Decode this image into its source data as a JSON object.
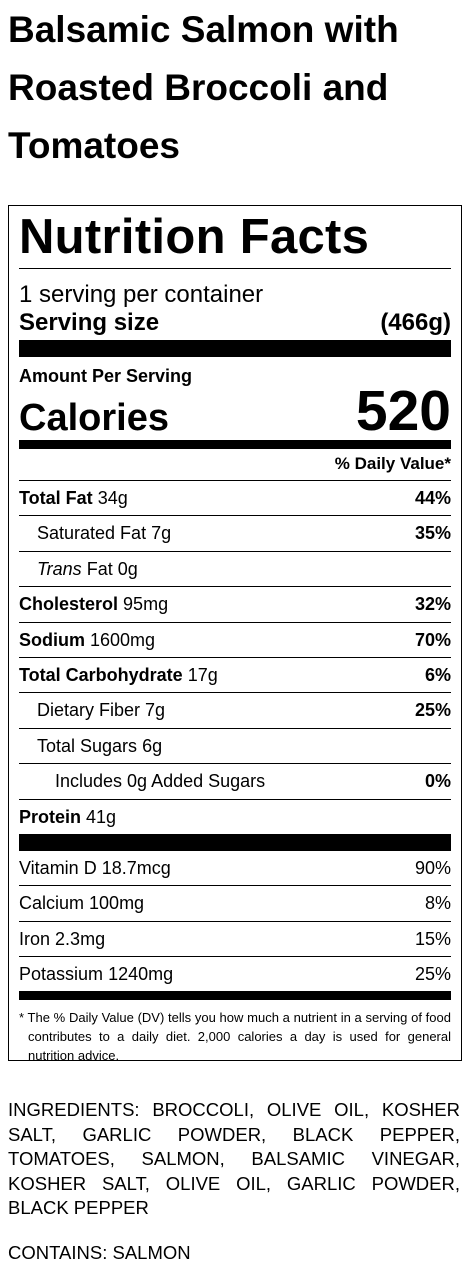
{
  "title": "Balsamic Salmon with Roasted Broccoli and Tomatoes",
  "label": {
    "heading": "Nutrition Facts",
    "servings": "1 serving per container",
    "serving_size_label": "Serving size",
    "serving_size": "(466g)",
    "amount_per_serving": "Amount Per Serving",
    "calories_label": "Calories",
    "calories": 520,
    "dv_header": "% Daily Value*",
    "nutrients": [
      {
        "name": "Total Fat",
        "amount": "34g",
        "dv": "44%",
        "sub": [
          {
            "name": "Saturated Fat",
            "amount": "7g",
            "dv": "35%"
          },
          {
            "name_italic": "Trans",
            "name": "Fat",
            "amount": "0g"
          }
        ]
      },
      {
        "name": "Cholesterol",
        "amount": "95mg",
        "dv": "32%"
      },
      {
        "name": "Sodium",
        "amount": "1600mg",
        "dv": "70%"
      },
      {
        "name": "Total Carbohydrate",
        "amount": "17g",
        "dv": "6%",
        "sub": [
          {
            "name": "Dietary Fiber",
            "amount": "7g",
            "dv": "25%"
          },
          {
            "name": "Total Sugars",
            "amount": "6g",
            "sub": [
              {
                "name": "Includes 0g Added Sugars",
                "dv": "0%"
              }
            ]
          }
        ]
      },
      {
        "name": "Protein",
        "amount": "41g"
      }
    ],
    "vitamins": [
      {
        "name": "Vitamin D",
        "amount": "18.7mcg",
        "dv": "90%"
      },
      {
        "name": "Calcium",
        "amount": "100mg",
        "dv": "8%"
      },
      {
        "name": "Iron",
        "amount": "2.3mg",
        "dv": "15%"
      },
      {
        "name": "Potassium",
        "amount": "1240mg",
        "dv": "25%"
      }
    ],
    "footnote": "* The % Daily Value (DV) tells you how much a nutrient in a serving of food contributes to a daily diet. 2,000 calories a day is used for general nutrition advice."
  },
  "ingredients": "INGREDIENTS: BROCCOLI, OLIVE OIL, KOSHER SALT, GARLIC POWDER, BLACK PEPPER, TOMATOES, SALMON, BALSAMIC VINEGAR, KOSHER SALT, OLIVE OIL, GARLIC POWDER, BLACK PEPPER",
  "contains": "CONTAINS: SALMON"
}
